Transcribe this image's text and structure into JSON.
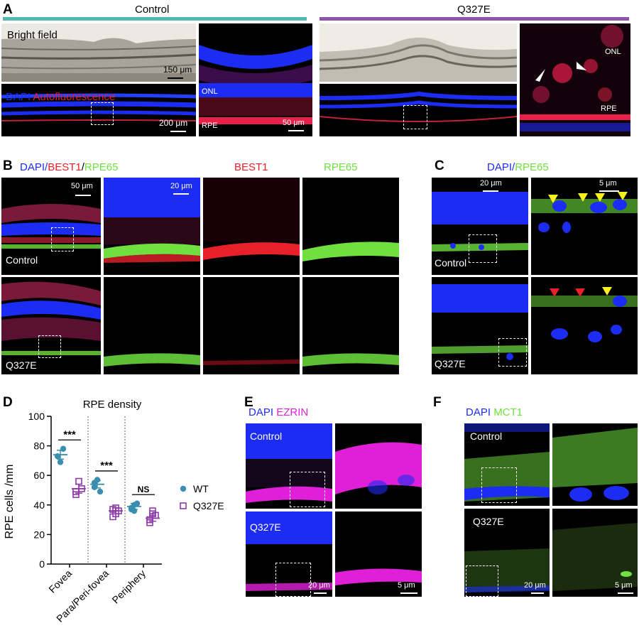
{
  "panel_letters": {
    "a": "A",
    "b": "B",
    "c": "C",
    "d": "D",
    "e": "E",
    "f": "F"
  },
  "colors": {
    "control_bar": "#55b8ae",
    "q327e_bar": "#8e54a8",
    "dapi": "#1d2cf2",
    "red": "#e8202a",
    "green": "#6fe040",
    "magenta": "#e020d8",
    "wt": "#3a8fb0",
    "q327e": "#8e3aa8"
  },
  "panel_a": {
    "control_title": "Control",
    "q327e_title": "Q327E",
    "bright_field": "Bright field",
    "dapi": "DAPI",
    "autofluorescence": "Autofluorescence",
    "scale_150": "150 μm",
    "scale_200": "200 μm",
    "scale_50": "50 μm",
    "onl": "ONL",
    "rpe": "RPE"
  },
  "panel_b": {
    "dapi": "DAPI/",
    "best1": "BEST1",
    "slash": "/",
    "rpe65": "RPE65",
    "col_best1": "BEST1",
    "col_rpe65": "RPE65",
    "scale_50": "50 μm",
    "scale_20": "20 μm",
    "control": "Control",
    "q327e": "Q327E"
  },
  "panel_c": {
    "dapi": "DAPI/",
    "rpe65": "RPE65",
    "scale_20": "20 μm",
    "scale_5": "5 μm",
    "control": "Control",
    "q327e": "Q327E"
  },
  "panel_e": {
    "dapi": "DAPI",
    "marker": "EZRIN",
    "control": "Control",
    "q327e": "Q327E",
    "scale_20": "20 μm",
    "scale_5": "5 μm"
  },
  "panel_f": {
    "dapi": "DAPI",
    "marker": "MCT1",
    "control": "Control",
    "q327e": "Q327E",
    "scale_20": "20 μm",
    "scale_5": "5 μm"
  },
  "chart_data": {
    "type": "scatter",
    "title": "RPE density",
    "ylabel": "RPE cells /mm",
    "ylim": [
      0,
      100
    ],
    "yticks": [
      0,
      20,
      40,
      60,
      80,
      100
    ],
    "categories": [
      "Fovea",
      "Para/Peri-fovea",
      "Periphery"
    ],
    "significance": [
      "***",
      "***",
      "NS"
    ],
    "legend_position": "right",
    "series": [
      {
        "name": "WT",
        "marker": "filled-circle",
        "means": [
          74,
          54,
          39
        ],
        "sem": [
          3,
          2.5,
          2
        ],
        "points": [
          [
            73,
            69,
            78
          ],
          [
            52,
            57,
            49,
            55
          ],
          [
            37,
            40,
            41,
            38,
            36
          ]
        ]
      },
      {
        "name": "Q327E",
        "marker": "open-square",
        "means": [
          51,
          36,
          31
        ],
        "sem": [
          3,
          2,
          2
        ],
        "points": [
          [
            47,
            56,
            51,
            49
          ],
          [
            37,
            34,
            36,
            32,
            38
          ],
          [
            28,
            34,
            33,
            30,
            36
          ]
        ]
      }
    ]
  }
}
